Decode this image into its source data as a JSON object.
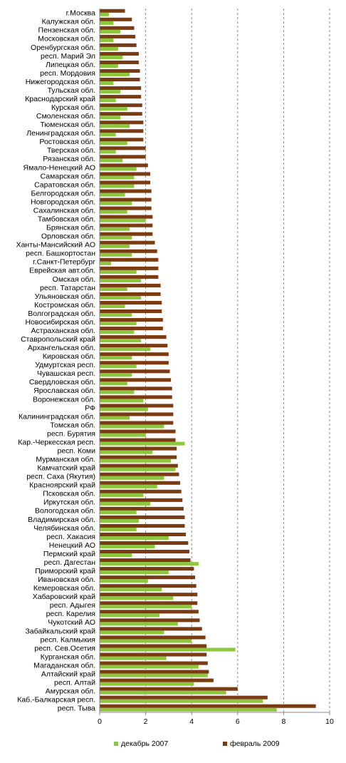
{
  "chart_data": {
    "type": "bar",
    "orientation": "horizontal",
    "xlim": [
      0,
      10
    ],
    "xticks": [
      "0",
      "2",
      "4",
      "6",
      "8",
      "10"
    ],
    "grid": "vertical dashed",
    "legend_position": "bottom",
    "colors": {
      "dec2007": "#8dc63f",
      "feb2009": "#7b3b12"
    },
    "series": [
      {
        "name": "декабрь 2007",
        "key": "dec2007"
      },
      {
        "name": "февраль 2009",
        "key": "feb2009"
      }
    ],
    "categories": [
      "г.Москва",
      "Калужская обл.",
      "Пензенская обл.",
      "Московская обл.",
      "Оренбургская обл.",
      "респ. Марий Эл",
      "Липецкая обл.",
      "респ. Мордовия",
      "Нижегородская обл.",
      "Тульская обл.",
      "Краснодарский край",
      "Курская обл.",
      "Смоленская обл.",
      "Тюменская обл.",
      "Ленинградская обл.",
      "Ростовская обл.",
      "Тверская обл.",
      "Рязанская обл.",
      "Ямало-Ненецкий АО",
      "Самарская обл.",
      "Саратовская обл.",
      "Белгородская обл.",
      "Новгородская обл.",
      "Сахалинская обл.",
      "Тамбовская обл.",
      "Брянская обл.",
      "Орловская обл.",
      "Ханты-Мансийский АО",
      "респ. Башкортостан",
      "г.Санкт-Петербург",
      "Еврейская авт.обл.",
      "Омская обл.",
      "респ. Татарстан",
      "Ульяновская обл.",
      "Костромская обл.",
      "Волгоградская обл.",
      "Новосибирская обл.",
      "Астраханская обл.",
      "Ставропольский край",
      "Архангельская обл.",
      "Кировская обл.",
      "Удмуртская респ.",
      "Чувашская респ.",
      "Свердловская обл.",
      "Ярославская обл.",
      "Воронежская обл.",
      "РФ",
      "Калининградская обл.",
      "Томская обл.",
      "респ. Бурятия",
      "Кар.-Черкесская респ.",
      "респ. Коми",
      "Мурманская обл.",
      "Камчатский край",
      "респ. Саха (Якутия)",
      "Красноярский край",
      "Псковская обл.",
      "Иркутская обл.",
      "Вологодская обл.",
      "Владимирская обл.",
      "Челябинская обл.",
      "респ. Хакасия",
      "Ненецкий АО",
      "Пермский край",
      "респ. Дагестан",
      "Приморский край",
      "Ивановская обл.",
      "Кемеровская обл.",
      "Хабаровский край",
      "респ. Адыгея",
      "респ. Карелия",
      "Чукотский АО",
      "Забайкальский край",
      "респ. Калмыкия",
      "респ. Сев.Осетия",
      "Курганская обл.",
      "Магаданская обл.",
      "Алтайский край",
      "респ. Алтай",
      "Амурская обл.",
      "Каб.-Балкарская респ.",
      "респ. Тыва"
    ],
    "values": {
      "feb2009": [
        1.1,
        1.4,
        1.5,
        1.55,
        1.6,
        1.7,
        1.7,
        1.75,
        1.75,
        1.8,
        1.8,
        1.85,
        1.85,
        1.9,
        1.9,
        1.9,
        2.0,
        2.0,
        2.1,
        2.2,
        2.2,
        2.25,
        2.25,
        2.25,
        2.3,
        2.3,
        2.3,
        2.4,
        2.5,
        2.55,
        2.55,
        2.55,
        2.65,
        2.65,
        2.7,
        2.7,
        2.75,
        2.75,
        2.9,
        2.95,
        3.0,
        3.0,
        3.05,
        3.1,
        3.15,
        3.15,
        3.2,
        3.2,
        3.2,
        3.3,
        3.3,
        3.35,
        3.35,
        3.4,
        3.45,
        3.5,
        3.55,
        3.6,
        3.65,
        3.7,
        3.7,
        3.75,
        3.85,
        3.9,
        3.95,
        4.1,
        4.15,
        4.2,
        4.25,
        4.25,
        4.3,
        4.35,
        4.45,
        4.6,
        4.65,
        4.65,
        4.7,
        4.75,
        4.95,
        6.0,
        7.3,
        9.4
      ],
      "dec2007": [
        0.4,
        0.6,
        0.9,
        0.6,
        0.8,
        1.0,
        0.8,
        1.3,
        0.6,
        0.9,
        0.7,
        1.2,
        0.9,
        1.3,
        0.7,
        1.2,
        0.7,
        1.0,
        1.6,
        1.5,
        1.5,
        1.1,
        1.4,
        1.2,
        2.0,
        1.3,
        1.4,
        1.3,
        1.4,
        0.5,
        1.6,
        1.8,
        1.2,
        1.8,
        1.1,
        1.4,
        1.6,
        1.5,
        1.8,
        2.2,
        1.4,
        1.6,
        1.4,
        1.2,
        1.5,
        1.9,
        2.1,
        1.3,
        2.8,
        2.0,
        3.7,
        2.3,
        3.1,
        3.3,
        2.8,
        2.5,
        1.9,
        2.2,
        1.6,
        1.7,
        1.6,
        3.0,
        2.4,
        1.4,
        4.3,
        3.0,
        2.1,
        2.7,
        3.2,
        4.0,
        2.6,
        3.4,
        2.8,
        4.0,
        5.9,
        2.9,
        4.3,
        4.7,
        4.1,
        5.5,
        7.1,
        7.7
      ]
    }
  }
}
